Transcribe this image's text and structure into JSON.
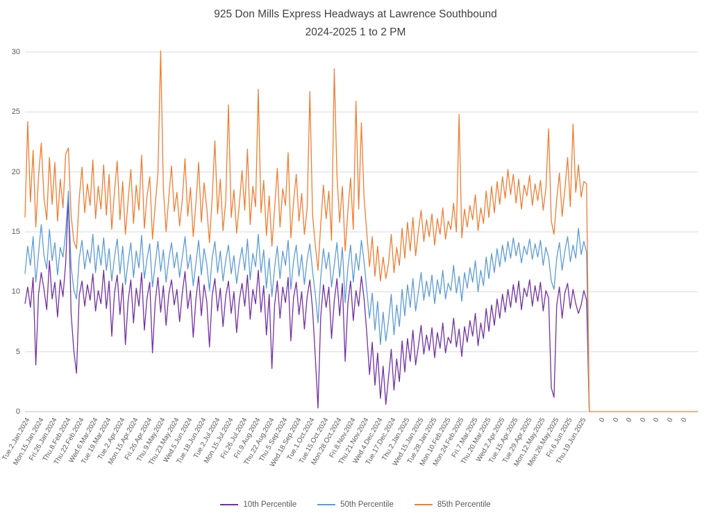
{
  "title": {
    "line1": "925 Don Mills Express Headways at Lawrence Southbound",
    "line2": "2024-2025 1 to 2 PM"
  },
  "colors": {
    "p10": "#7030a0",
    "p50": "#5b9bd5",
    "p85": "#ed7d31",
    "gridline": "#d9d9d9",
    "axis_text": "#595959",
    "title_text": "#404040"
  },
  "chart_data": {
    "type": "line",
    "title": "925 Don Mills Express Headways at Lawrence Southbound 2024-2025 1 to 2 PM",
    "xlabel": "",
    "ylabel": "",
    "ylim": [
      0,
      30
    ],
    "y_ticks": [
      0,
      5,
      10,
      15,
      20,
      25,
      30
    ],
    "grid": true,
    "legend_position": "bottom",
    "x_count": 249,
    "x_tick_step": 5,
    "x_tick_labels": [
      "Tue.2.Jan.2024",
      "Mon.15.Jan.2024",
      "Fri.26.Jan.2024",
      "Thu.8.Feb.2024",
      "Thu.22.Feb.2024",
      "Wed.6.Mar.2024",
      "Tue.19.Mar.2024",
      "Tue.2.Apr.2024",
      "Mon.15.Apr.2024",
      "Fri.26.Apr.2024",
      "Thu.9.May.2024",
      "Thu.23.May.2024",
      "Wed.5.Jun.2024",
      "Tue.18.Jun.2024",
      "Tue.2.Jul.2024",
      "Mon.15.Jul.2024",
      "Fri.26.Jul.2024",
      "Fri.9.Aug.2024",
      "Thu.22.Aug.2024",
      "Thu.5.Sep.2024",
      "Wed.18.Sep.2024",
      "Tue.1.Oct.2024",
      "Tue.15.Oct.2024",
      "Mon.28.Oct.2024",
      "Fri.8.Nov.2024",
      "Thu.21.Nov.2024",
      "Wed.4.Dec.2024",
      "Tue.17.Dec.2024",
      "Thu.2.Jan.2025",
      "Wed.15.Jan.2025",
      "Tue.28.Jan.2025",
      "Mon.10.Feb.2025",
      "Mon.24.Feb.2025",
      "Fri.7.Mar.2025",
      "Thu.20.Mar.2025",
      "Wed.2.Apr.2025",
      "Tue.15.Apr.2025",
      "Tue.29.Apr.2025",
      "Mon.12.May.2025",
      "Mon.26.May.2025",
      "Fri.6.Jun.2025",
      "Thu.19.Jun.2025"
    ],
    "trailing_zero_label": "0",
    "trailing_zero_tick_indices": [
      212,
      217,
      222,
      227,
      232,
      237,
      242
    ],
    "series": [
      {
        "name": "10th Percentile",
        "color": "#7030a0",
        "values": [
          9.0,
          10.4,
          8.7,
          11.2,
          3.9,
          9.8,
          11.6,
          10.2,
          8.5,
          12.6,
          9.4,
          10.8,
          7.9,
          11.0,
          9.6,
          12.4,
          17.9,
          8.2,
          5.1,
          3.2,
          9.7,
          10.9,
          8.8,
          10.6,
          9.3,
          11.5,
          8.4,
          10.1,
          9.0,
          11.8,
          8.6,
          10.9,
          6.3,
          9.9,
          11.4,
          8.1,
          10.7,
          5.6,
          9.2,
          11.0,
          7.4,
          10.3,
          8.8,
          11.6,
          6.8,
          9.5,
          10.8,
          4.9,
          9.1,
          11.2,
          8.3,
          10.5,
          7.2,
          9.8,
          11.0,
          8.9,
          10.2,
          7.5,
          9.9,
          11.7,
          8.6,
          10.1,
          6.2,
          9.4,
          11.3,
          8.0,
          10.6,
          9.2,
          5.4,
          9.7,
          11.1,
          8.4,
          10.3,
          7.1,
          9.6,
          10.9,
          8.2,
          10.0,
          6.6,
          9.3,
          10.7,
          8.8,
          11.4,
          7.7,
          10.2,
          9.0,
          11.8,
          8.3,
          10.5,
          6.4,
          9.8,
          3.6,
          8.9,
          10.9,
          7.8,
          10.4,
          9.1,
          11.2,
          5.9,
          9.5,
          10.8,
          8.1,
          10.0,
          6.9,
          9.6,
          11.0,
          8.5,
          4.6,
          0.3,
          7.9,
          10.6,
          8.7,
          10.4,
          6.1,
          9.2,
          11.1,
          8.0,
          10.7,
          4.2,
          9.0,
          10.9,
          7.6,
          10.1,
          8.8,
          11.3,
          9.4,
          6.5,
          3.1,
          5.8,
          2.2,
          4.9,
          1.1,
          3.8,
          0.6,
          2.9,
          5.2,
          1.8,
          4.4,
          2.5,
          5.9,
          3.3,
          6.1,
          4.2,
          6.8,
          3.9,
          5.5,
          7.2,
          4.8,
          6.4,
          5.1,
          7.0,
          4.5,
          6.6,
          5.3,
          7.4,
          4.9,
          6.2,
          5.7,
          7.8,
          5.4,
          6.9,
          4.6,
          7.1,
          5.8,
          7.6,
          6.3,
          8.2,
          5.5,
          7.4,
          6.1,
          8.6,
          6.7,
          8.9,
          7.2,
          9.4,
          7.8,
          9.8,
          8.3,
          10.2,
          8.7,
          10.6,
          9.1,
          10.9,
          8.5,
          10.3,
          9.6,
          11.0,
          8.8,
          10.5,
          9.2,
          10.8,
          8.4,
          10.1,
          9.5,
          2.0,
          1.2,
          8.9,
          10.4,
          7.8,
          9.9,
          10.7,
          8.6,
          10.2,
          9.0,
          8.2,
          8.9,
          10.1,
          9.3,
          0
        ]
      },
      {
        "name": "50th Percentile",
        "color": "#5b9bd5",
        "values": [
          11.5,
          13.8,
          12.2,
          14.6,
          10.8,
          13.2,
          15.6,
          13.0,
          11.9,
          15.2,
          12.6,
          14.1,
          11.4,
          13.7,
          12.9,
          15.0,
          18.4,
          12.1,
          10.2,
          9.4,
          12.8,
          14.3,
          11.9,
          13.5,
          12.4,
          14.8,
          11.6,
          13.9,
          12.2,
          14.5,
          11.8,
          13.6,
          10.9,
          12.9,
          14.4,
          11.5,
          13.8,
          10.6,
          12.5,
          14.1,
          11.2,
          13.4,
          12.0,
          14.7,
          11.1,
          12.8,
          14.0,
          10.4,
          12.3,
          14.2,
          11.7,
          13.5,
          10.8,
          12.7,
          14.1,
          12.0,
          13.3,
          11.2,
          12.9,
          14.6,
          11.9,
          13.1,
          10.5,
          12.4,
          14.3,
          11.4,
          13.6,
          12.3,
          10.1,
          12.8,
          14.2,
          11.6,
          13.4,
          10.9,
          12.6,
          13.9,
          11.5,
          13.0,
          10.7,
          12.4,
          13.7,
          11.8,
          14.4,
          11.0,
          13.2,
          12.1,
          14.8,
          11.6,
          13.5,
          10.3,
          12.8,
          9.6,
          12.0,
          13.8,
          11.1,
          13.4,
          12.2,
          14.3,
          10.2,
          12.6,
          13.9,
          11.3,
          13.1,
          10.6,
          12.7,
          14.0,
          11.7,
          9.8,
          7.4,
          11.2,
          13.6,
          11.9,
          13.3,
          10.4,
          12.2,
          14.1,
          11.2,
          13.7,
          9.1,
          12.0,
          13.9,
          10.8,
          13.2,
          11.8,
          14.3,
          12.5,
          10.1,
          7.8,
          9.9,
          6.8,
          9.2,
          5.6,
          8.3,
          5.9,
          7.6,
          9.8,
          6.4,
          8.9,
          7.1,
          10.2,
          8.0,
          10.6,
          8.7,
          11.1,
          8.4,
          10.0,
          11.6,
          9.3,
          10.9,
          9.6,
          11.4,
          9.0,
          11.0,
          9.8,
          11.8,
          9.4,
          10.7,
          10.1,
          12.2,
          9.9,
          11.3,
          9.2,
          11.6,
          10.3,
          12.0,
          10.8,
          12.6,
          10.0,
          11.8,
          10.5,
          12.9,
          11.1,
          13.2,
          11.6,
          13.6,
          12.1,
          13.9,
          12.5,
          14.2,
          12.8,
          14.5,
          13.0,
          14.1,
          12.4,
          13.8,
          13.1,
          14.4,
          12.7,
          14.0,
          12.9,
          14.3,
          12.2,
          13.7,
          12.9,
          10.9,
          10.2,
          12.8,
          14.1,
          11.8,
          13.4,
          14.6,
          12.5,
          13.9,
          12.8,
          15.3,
          13.1,
          14.2,
          13.3,
          0
        ]
      },
      {
        "name": "85th Percentile",
        "color": "#ed7d31",
        "values": [
          16.2,
          24.2,
          17.5,
          21.8,
          15.4,
          19.6,
          22.4,
          17.8,
          16.0,
          21.2,
          17.3,
          20.8,
          15.9,
          19.4,
          17.0,
          21.5,
          22.0,
          16.4,
          14.2,
          13.6,
          17.8,
          20.4,
          16.6,
          19.0,
          17.2,
          21.0,
          16.1,
          18.8,
          16.9,
          20.6,
          16.4,
          19.8,
          15.2,
          18.4,
          20.9,
          16.0,
          19.2,
          14.8,
          17.6,
          20.2,
          15.7,
          18.9,
          16.8,
          21.4,
          15.3,
          18.0,
          19.6,
          14.4,
          17.2,
          19.9,
          30.1,
          18.6,
          15.0,
          17.9,
          20.5,
          16.7,
          18.3,
          15.5,
          17.7,
          21.1,
          16.3,
          18.7,
          14.6,
          17.4,
          20.8,
          15.8,
          19.1,
          17.0,
          14.1,
          17.8,
          22.6,
          16.5,
          19.4,
          15.1,
          17.6,
          25.6,
          16.2,
          18.5,
          14.9,
          17.3,
          20.1,
          16.8,
          21.9,
          15.6,
          18.8,
          17.1,
          26.9,
          16.6,
          19.3,
          14.7,
          18.0,
          13.8,
          16.9,
          20.3,
          15.4,
          18.6,
          17.2,
          21.6,
          14.5,
          17.5,
          19.8,
          15.9,
          18.2,
          14.8,
          17.0,
          26.7,
          16.4,
          13.9,
          11.8,
          15.6,
          18.9,
          16.1,
          18.4,
          14.3,
          28.6,
          19.7,
          15.8,
          18.8,
          13.4,
          16.7,
          19.5,
          15.2,
          25.9,
          16.9,
          24.1,
          17.8,
          14.9,
          12.1,
          14.6,
          11.3,
          13.8,
          10.9,
          12.9,
          11.1,
          12.4,
          14.8,
          11.6,
          13.7,
          12.2,
          15.3,
          12.8,
          15.8,
          13.4,
          16.2,
          13.0,
          15.1,
          16.8,
          14.2,
          16.0,
          14.6,
          16.5,
          13.9,
          16.1,
          14.8,
          17.0,
          14.4,
          15.9,
          15.2,
          17.4,
          15.0,
          24.8,
          14.5,
          16.9,
          15.4,
          17.2,
          16.0,
          18.1,
          15.1,
          17.0,
          15.7,
          18.4,
          16.2,
          18.8,
          16.6,
          19.2,
          17.3,
          19.6,
          17.8,
          20.2,
          18.1,
          19.8,
          17.4,
          19.4,
          16.9,
          18.9,
          18.0,
          19.7,
          17.2,
          19.0,
          17.6,
          19.3,
          16.8,
          18.6,
          23.6,
          15.9,
          14.8,
          17.7,
          19.9,
          16.3,
          18.5,
          21.2,
          17.1,
          24.0,
          18.3,
          20.6,
          17.9,
          19.2,
          19.0,
          0,
          0,
          0,
          0,
          0,
          0,
          0,
          0,
          0,
          0,
          0,
          0,
          0,
          0,
          0,
          0,
          0,
          0,
          0,
          0,
          0,
          0,
          0,
          0,
          0,
          0,
          0,
          0,
          0,
          0,
          0,
          0,
          0,
          0,
          0,
          0,
          0,
          0,
          0,
          0,
          0
        ]
      }
    ]
  }
}
